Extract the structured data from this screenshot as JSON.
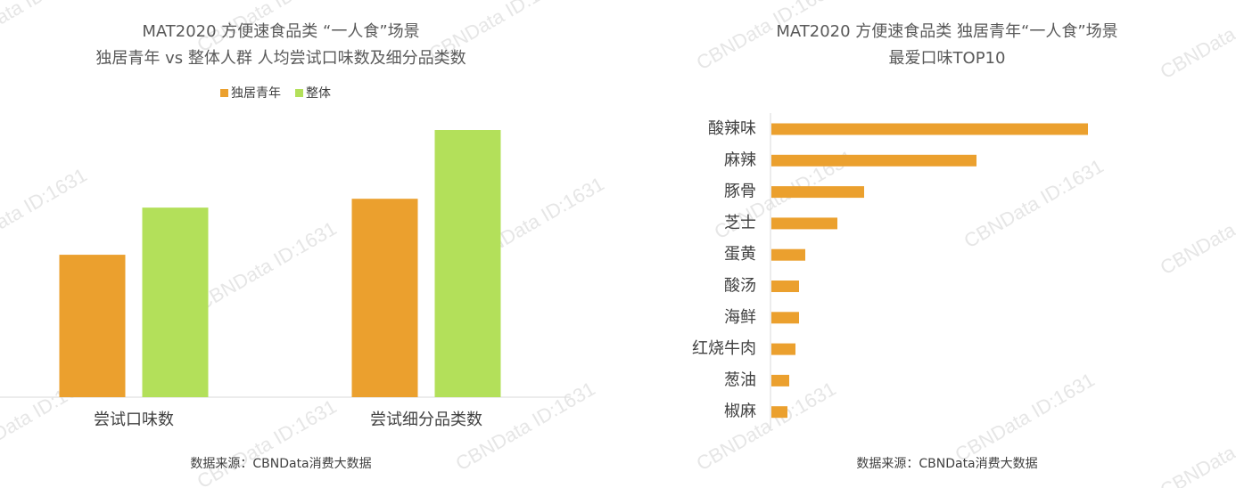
{
  "watermark": "CBNData ID:1631",
  "chart_data": [
    {
      "type": "bar",
      "title": [
        "MAT2020 方便速食品类 “一人食”场景",
        "独居青年 vs 整体人群 人均尝试口味数及细分品类数"
      ],
      "categories": [
        "尝试口味数",
        "尝试细分品类数"
      ],
      "series": [
        {
          "name": "独居青年",
          "color": "#eba02e",
          "values": [
            145,
            202
          ]
        },
        {
          "name": "整体",
          "color": "#b3e05a",
          "values": [
            193,
            272
          ]
        }
      ],
      "legend": "top",
      "source": "数据来源：CBNData消费大数据"
    },
    {
      "type": "hbar",
      "title": [
        "MAT2020 方便速食品类 独居青年“一人食”场景",
        "最爱口味TOP10"
      ],
      "categories": [
        "酸辣味",
        "麻辣",
        "豚骨",
        "芝士",
        "蛋黄",
        "酸汤",
        "海鲜",
        "红烧牛肉",
        "葱油",
        "椒麻"
      ],
      "values": [
        355,
        230,
        104,
        74,
        38,
        31,
        31,
        27,
        20,
        18
      ],
      "color": "#eba02e",
      "source": "数据来源：CBNData消费大数据"
    }
  ]
}
